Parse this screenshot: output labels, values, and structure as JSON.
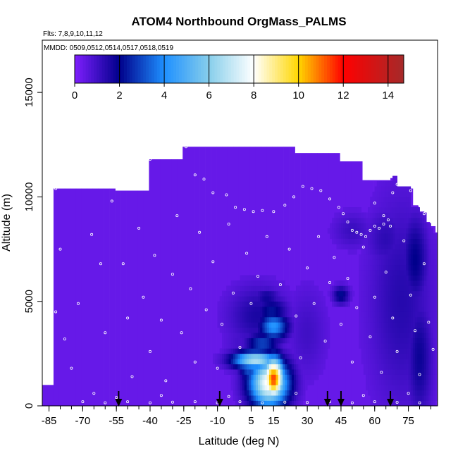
{
  "chart_data": {
    "type": "heatmap",
    "title": "ATOM4 Northbound OrgMass_PALMS",
    "flights_label": "Flts: 7,8,9,10,11,12",
    "dates_label": "MMDD: 0509,0512,0514,0517,0518,0519",
    "xlabel": "Latitude (deg N)",
    "ylabel": "Altitude (m)",
    "xlim": [
      -88,
      88
    ],
    "ylim": [
      0,
      17500
    ],
    "x_ticks": [
      -85,
      -70,
      -55,
      -40,
      -25,
      -10,
      5,
      15,
      30,
      45,
      60,
      75
    ],
    "y_ticks": [
      0,
      5000,
      10000,
      15000
    ],
    "colorbar": {
      "min": 0,
      "max": 14.7,
      "ticks": [
        0,
        2,
        4,
        6,
        8,
        10,
        12,
        14
      ],
      "stops": [
        {
          "v": 0,
          "c": "#7f1fff"
        },
        {
          "v": 2,
          "c": "#00008b"
        },
        {
          "v": 4,
          "c": "#1e90ff"
        },
        {
          "v": 6,
          "c": "#87ceeb"
        },
        {
          "v": 8,
          "c": "#ffffff"
        },
        {
          "v": 10,
          "c": "#ffd700"
        },
        {
          "v": 12,
          "c": "#ff0000"
        },
        {
          "v": 14.7,
          "c": "#a52a2a"
        }
      ]
    },
    "background_value": 0.4,
    "coverage": [
      [
        -87,
        0,
        900
      ],
      [
        -87,
        2,
        1000
      ],
      [
        -83,
        0,
        8000
      ],
      [
        -83,
        5,
        10400
      ],
      [
        -68,
        0,
        8000
      ],
      [
        -68,
        5,
        10400
      ],
      [
        -55,
        0,
        10300
      ],
      [
        -40,
        0,
        11800
      ],
      [
        -25,
        0,
        12400
      ],
      [
        -10,
        0,
        12400
      ],
      [
        5,
        0,
        12400
      ],
      [
        20,
        0,
        12400
      ],
      [
        25,
        0,
        12100
      ],
      [
        45,
        0,
        11700
      ],
      [
        55,
        0,
        10800
      ],
      [
        68,
        0,
        10900
      ],
      [
        70,
        0,
        10400
      ],
      [
        76,
        0,
        9600
      ],
      [
        80,
        0,
        9300
      ],
      [
        83,
        0,
        8800
      ],
      [
        85,
        0,
        8600
      ],
      [
        86.5,
        0,
        8300
      ]
    ],
    "hotspots": [
      {
        "lat": 15,
        "alt": 1300,
        "sx": 3.2,
        "sy": 700,
        "v": 11.5
      },
      {
        "lat": 13,
        "alt": 1100,
        "sx": 6,
        "sy": 800,
        "v": 8.2
      },
      {
        "lat": 7,
        "alt": 2200,
        "sx": 7,
        "sy": 300,
        "v": 6.8
      },
      {
        "lat": 4,
        "alt": 1800,
        "sx": 3,
        "sy": 500,
        "v": 3.2
      },
      {
        "lat": 15,
        "alt": 3800,
        "sx": 4.5,
        "sy": 450,
        "v": 4.2
      },
      {
        "lat": 10,
        "alt": 3000,
        "sx": 5,
        "sy": 350,
        "v": 3.0
      },
      {
        "lat": 14,
        "alt": 4500,
        "sx": 5,
        "sy": 500,
        "v": 2.3
      },
      {
        "lat": 8,
        "alt": 4300,
        "sx": 9,
        "sy": 1000,
        "v": 1.6
      },
      {
        "lat": 12,
        "alt": 5200,
        "sx": 4,
        "sy": 300,
        "v": 1.8
      },
      {
        "lat": 45,
        "alt": 5300,
        "sx": 2.5,
        "sy": 300,
        "v": 2.2
      },
      {
        "lat": 78,
        "alt": 7000,
        "sx": 4,
        "sy": 1500,
        "v": 2.0
      },
      {
        "lat": 80,
        "alt": 2300,
        "sx": 4,
        "sy": 2000,
        "v": 1.8
      },
      {
        "lat": 72,
        "alt": 5000,
        "sx": 10,
        "sy": 3500,
        "v": 1.4
      },
      {
        "lat": 65,
        "alt": 8000,
        "sx": 6,
        "sy": 1000,
        "v": 1.3
      },
      {
        "lat": 50,
        "alt": 8400,
        "sx": 6,
        "sy": 600,
        "v": 1.1
      },
      {
        "lat": 30,
        "alt": 3500,
        "sx": 6,
        "sy": 1500,
        "v": 1.0
      },
      {
        "lat": 0,
        "alt": 3000,
        "sx": 5,
        "sy": 1200,
        "v": 0.9
      }
    ],
    "sample_points": [
      [
        -86,
        10000
      ],
      [
        -84,
        10100
      ],
      [
        -82,
        10400
      ],
      [
        -80,
        10600
      ],
      [
        -78,
        10700
      ],
      [
        -76,
        10900
      ],
      [
        -74,
        11100
      ],
      [
        -72,
        11200
      ],
      [
        -70,
        11300
      ],
      [
        -60,
        11450
      ],
      [
        -55,
        11550
      ],
      [
        -45,
        11700
      ],
      [
        -40,
        11800
      ],
      [
        -36,
        12000
      ],
      [
        -33,
        12100
      ],
      [
        -28,
        12300
      ],
      [
        -24,
        12400
      ],
      [
        -20,
        11050
      ],
      [
        -16,
        10850
      ],
      [
        -12,
        10200
      ],
      [
        -6,
        10100
      ],
      [
        -2,
        9500
      ],
      [
        2,
        9400
      ],
      [
        6,
        9300
      ],
      [
        10,
        9350
      ],
      [
        15,
        9300
      ],
      [
        20,
        9600
      ],
      [
        24,
        10000
      ],
      [
        28,
        10500
      ],
      [
        32,
        10400
      ],
      [
        36,
        10300
      ],
      [
        40,
        9900
      ],
      [
        44,
        9500
      ],
      [
        46,
        9200
      ],
      [
        48,
        8800
      ],
      [
        50,
        8400
      ],
      [
        52,
        8300
      ],
      [
        54,
        8200
      ],
      [
        56,
        8100
      ],
      [
        58,
        8400
      ],
      [
        60,
        8600
      ],
      [
        62,
        8500
      ],
      [
        64,
        8700
      ],
      [
        66,
        8900
      ],
      [
        68,
        10200
      ],
      [
        70,
        10600
      ],
      [
        72,
        10800
      ],
      [
        74,
        10600
      ],
      [
        76,
        10300
      ],
      [
        78,
        9900
      ],
      [
        80,
        9600
      ],
      [
        82,
        9200
      ],
      [
        -85,
        9000
      ],
      [
        -80,
        7500
      ],
      [
        -85,
        6000
      ],
      [
        -82,
        4500
      ],
      [
        -84,
        2500
      ],
      [
        -75,
        1800
      ],
      [
        -65,
        600
      ],
      [
        -60,
        3500
      ],
      [
        -57,
        9800
      ],
      [
        -52,
        6800
      ],
      [
        -50,
        4200
      ],
      [
        -48,
        1400
      ],
      [
        -45,
        8500
      ],
      [
        -43,
        5200
      ],
      [
        -40,
        2600
      ],
      [
        -38,
        7200
      ],
      [
        -35,
        4100
      ],
      [
        -33,
        1200
      ],
      [
        -30,
        6300
      ],
      [
        -28,
        9100
      ],
      [
        -26,
        3500
      ],
      [
        -22,
        5600
      ],
      [
        -20,
        2100
      ],
      [
        -18,
        8300
      ],
      [
        -15,
        4600
      ],
      [
        -12,
        6900
      ],
      [
        -10,
        1800
      ],
      [
        -8,
        3900
      ],
      [
        -5,
        8700
      ],
      [
        -3,
        5400
      ],
      [
        0,
        2800
      ],
      [
        3,
        7300
      ],
      [
        5,
        4900
      ],
      [
        8,
        6200
      ],
      [
        12,
        8100
      ],
      [
        18,
        5800
      ],
      [
        22,
        7500
      ],
      [
        25,
        4300
      ],
      [
        27,
        2300
      ],
      [
        30,
        6600
      ],
      [
        33,
        4900
      ],
      [
        35,
        8100
      ],
      [
        38,
        3100
      ],
      [
        40,
        5900
      ],
      [
        42,
        7100
      ],
      [
        45,
        3900
      ],
      [
        48,
        6100
      ],
      [
        50,
        2100
      ],
      [
        52,
        4700
      ],
      [
        55,
        7600
      ],
      [
        58,
        3300
      ],
      [
        60,
        5200
      ],
      [
        63,
        1600
      ],
      [
        65,
        6400
      ],
      [
        68,
        4200
      ],
      [
        70,
        2600
      ],
      [
        73,
        7900
      ],
      [
        76,
        5300
      ],
      [
        78,
        3600
      ],
      [
        80,
        1500
      ],
      [
        82,
        6800
      ],
      [
        84,
        4000
      ],
      [
        86,
        2700
      ],
      [
        -70,
        200
      ],
      [
        -60,
        150
      ],
      [
        -50,
        200
      ],
      [
        -40,
        150
      ],
      [
        -30,
        180
      ],
      [
        -20,
        200
      ],
      [
        -10,
        150
      ],
      [
        0,
        200
      ],
      [
        10,
        150
      ],
      [
        20,
        180
      ],
      [
        30,
        160
      ],
      [
        40,
        200
      ],
      [
        50,
        150
      ],
      [
        60,
        200
      ],
      [
        70,
        170
      ],
      [
        80,
        150
      ],
      [
        -55,
        400
      ],
      [
        -35,
        500
      ],
      [
        -5,
        450
      ],
      [
        25,
        600
      ],
      [
        55,
        500
      ],
      [
        75,
        600
      ],
      [
        -62,
        6800
      ],
      [
        -66,
        8200
      ],
      [
        -72,
        4900
      ],
      [
        -78,
        3200
      ],
      [
        60,
        9700
      ],
      [
        64,
        9100
      ],
      [
        67,
        8600
      ]
    ],
    "flight_markers": [
      -54,
      -9,
      39,
      45,
      67
    ]
  }
}
